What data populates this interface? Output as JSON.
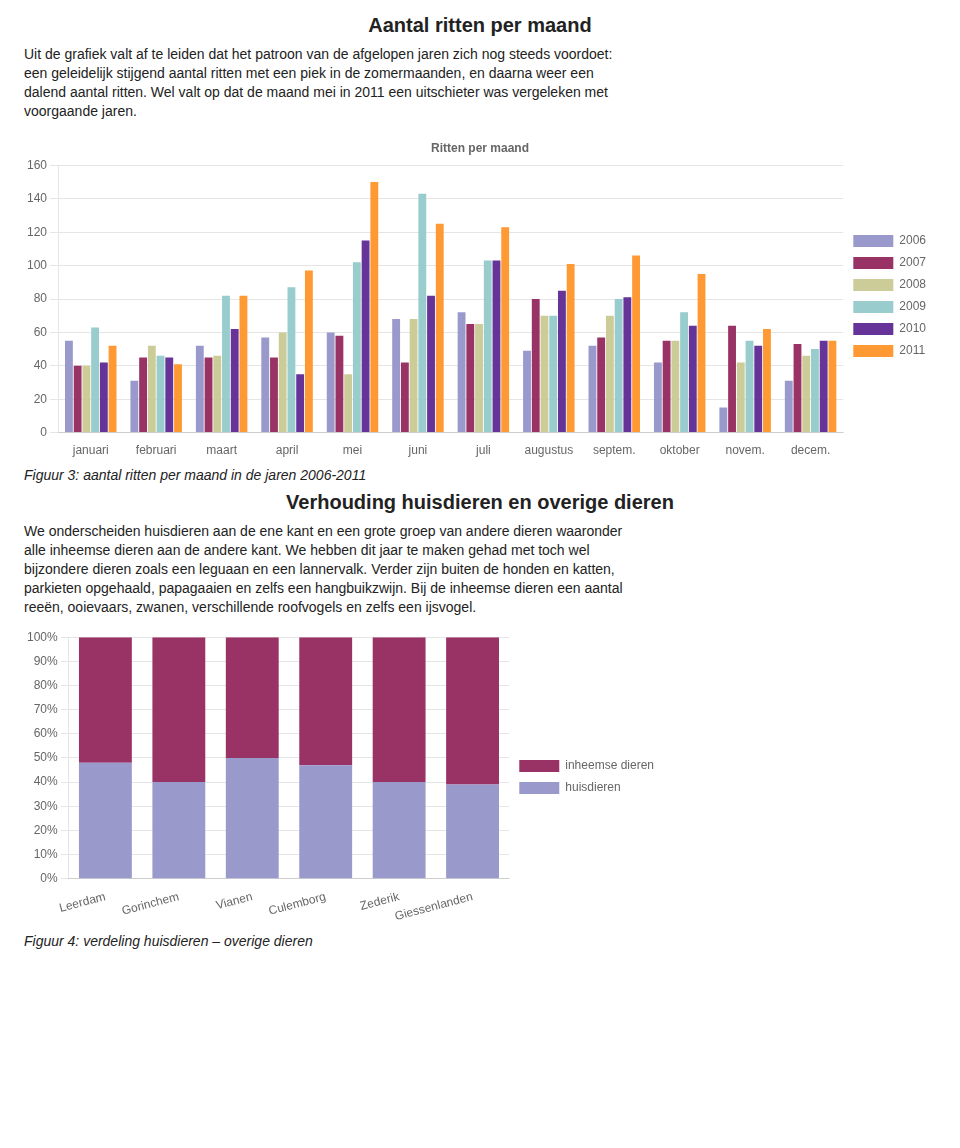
{
  "chart_data": [
    {
      "type": "bar",
      "heading": "Aantal ritten per maand",
      "paragraph": [
        "Uit de grafiek valt af te leiden dat het patroon van de afgelopen jaren zich nog steeds voordoet:",
        "een geleidelijk stijgend aantal ritten met een piek in de zomermaanden, en daarna weer een",
        "dalend aantal ritten. Wel valt op dat de maand mei in 2011 een uitschieter was vergeleken met",
        "voorgaande jaren."
      ],
      "title": "Ritten per maand",
      "caption": "Figuur 3: aantal ritten per maand in de jaren 2006-2011",
      "categories": [
        "januari",
        "februari",
        "maart",
        "april",
        "mei",
        "juni",
        "juli",
        "augustus",
        "septem.",
        "oktober",
        "novem.",
        "decem."
      ],
      "series": [
        {
          "name": "2006",
          "color": "#9999cc",
          "values": [
            55,
            31,
            52,
            57,
            60,
            68,
            72,
            49,
            52,
            42,
            15,
            31
          ]
        },
        {
          "name": "2007",
          "color": "#993366",
          "values": [
            40,
            45,
            45,
            45,
            58,
            42,
            65,
            80,
            57,
            55,
            64,
            53
          ]
        },
        {
          "name": "2008",
          "color": "#cccc99",
          "values": [
            40,
            52,
            46,
            60,
            35,
            68,
            65,
            70,
            70,
            55,
            42,
            46
          ]
        },
        {
          "name": "2009",
          "color": "#99cccc",
          "values": [
            63,
            46,
            82,
            87,
            102,
            143,
            103,
            70,
            80,
            72,
            55,
            50
          ]
        },
        {
          "name": "2010",
          "color": "#663399",
          "values": [
            42,
            45,
            62,
            35,
            115,
            82,
            103,
            85,
            81,
            64,
            52,
            55
          ]
        },
        {
          "name": "2011",
          "color": "#ff9933",
          "values": [
            52,
            41,
            82,
            97,
            150,
            125,
            123,
            101,
            106,
            95,
            62,
            55
          ]
        }
      ],
      "ylim": [
        0,
        160
      ],
      "yticks": [
        0,
        20,
        40,
        60,
        80,
        100,
        120,
        140,
        160
      ],
      "grid": true,
      "legend": "right"
    },
    {
      "type": "bar",
      "heading": "Verhouding huisdieren en overige dieren",
      "paragraph": [
        "We onderscheiden huisdieren aan de ene kant en een grote groep van andere dieren waaronder",
        "alle inheemse dieren aan de andere kant. We hebben dit jaar te maken gehad met toch wel",
        "bijzondere dieren zoals een leguaan en een lannervalk. Verder zijn buiten de honden en katten,",
        "parkieten opgehaald, papagaaien en zelfs een hangbuikzwijn. Bij de inheemse dieren een aantal",
        "reeën, ooievaars, zwanen, verschillende roofvogels en zelfs een ijsvogel."
      ],
      "caption": "Figuur 4: verdeling huisdieren – overige dieren",
      "categories": [
        "Leerdam",
        "Gorinchem",
        "Vianen",
        "Culemborg",
        "Zederik",
        "Giessenlanden"
      ],
      "series": [
        {
          "name": "huisdieren",
          "color": "#9999cc",
          "values": [
            0.48,
            0.4,
            0.5,
            0.47,
            0.4,
            0.39
          ]
        },
        {
          "name": "inheemse dieren",
          "color": "#993366",
          "values": [
            0.52,
            0.6,
            0.5,
            0.53,
            0.6,
            0.61
          ]
        }
      ],
      "stacked": true,
      "ylim": [
        0,
        1.0
      ],
      "yticks": [
        {
          "value": 0,
          "label": "0%"
        },
        {
          "value": 0.1,
          "label": "10%"
        },
        {
          "value": 0.2,
          "label": "20%"
        },
        {
          "value": 0.3,
          "label": "30%"
        },
        {
          "value": 0.4,
          "label": "40%"
        },
        {
          "value": 0.5,
          "label": "50%"
        },
        {
          "value": 0.6,
          "label": "60%"
        },
        {
          "value": 0.7,
          "label": "70%"
        },
        {
          "value": 0.8,
          "label": "80%"
        },
        {
          "value": 0.9,
          "label": "90%"
        },
        {
          "value": 1.0,
          "label": "100%"
        }
      ],
      "grid": true,
      "legend": "right"
    }
  ]
}
